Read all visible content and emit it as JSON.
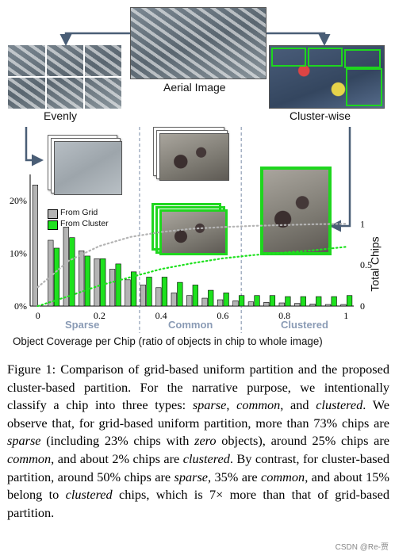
{
  "figure": {
    "labels": {
      "aerial": "Aerial Image",
      "evenly": "Evenly",
      "cluster_wise": "Cluster-wise"
    },
    "category_labels": [
      "Sparse",
      "Common",
      "Clustered"
    ],
    "category_color": "#8a9bb5",
    "legend": [
      "From Grid",
      "From Cluster"
    ],
    "series_colors": {
      "grid": "#b4b4b4",
      "cluster": "#1ee11e"
    },
    "xaxis_label": "Object Coverage per Chip (ratio of objects in chip to whole image)",
    "right_axis_label": "Total Chips"
  },
  "chart_data": {
    "type": "bar",
    "xlabel": "Object Coverage per Chip (ratio of objects in chip to whole image)",
    "ylabel": "",
    "y2label": "Total Chips",
    "ylim": [
      0,
      0.25
    ],
    "y2lim": [
      0,
      1.6
    ],
    "xlim": [
      -0.025,
      1.025
    ],
    "yticks": [
      "0%",
      "10%",
      "20%"
    ],
    "ytick_values": [
      0,
      0.1,
      0.2
    ],
    "y2ticks": [
      "0",
      "0.5",
      "1"
    ],
    "y2tick_values": [
      0,
      0.5,
      1
    ],
    "xticks": [
      "0",
      "0.2",
      "0.4",
      "0.6",
      "0.8",
      "1"
    ],
    "xtick_values": [
      0,
      0.2,
      0.4,
      0.6,
      0.8,
      1
    ],
    "bin_centers": [
      0,
      0.05,
      0.1,
      0.15,
      0.2,
      0.25,
      0.3,
      0.35,
      0.4,
      0.45,
      0.5,
      0.55,
      0.6,
      0.65,
      0.7,
      0.75,
      0.8,
      0.85,
      0.9,
      0.95,
      1.0
    ],
    "series": [
      {
        "name": "From Grid",
        "values": [
          0.23,
          0.125,
          0.15,
          0.105,
          0.09,
          0.07,
          0.05,
          0.04,
          0.035,
          0.025,
          0.02,
          0.015,
          0.012,
          0.01,
          0.008,
          0.007,
          0.006,
          0.005,
          0.004,
          0.003,
          0.003
        ]
      },
      {
        "name": "From Cluster",
        "values": [
          0,
          0.11,
          0.13,
          0.095,
          0.09,
          0.08,
          0.065,
          0.055,
          0.055,
          0.045,
          0.04,
          0.03,
          0.025,
          0.02,
          0.02,
          0.02,
          0.018,
          0.018,
          0.018,
          0.018,
          0.02
        ]
      }
    ],
    "cumulative_lines": [
      {
        "series": "From Grid",
        "style": "dotted",
        "color": "#b4b4b4",
        "x": [
          0,
          0.1,
          0.2,
          0.3,
          0.4,
          0.5,
          0.6,
          0.7,
          0.8,
          0.9,
          1.0
        ],
        "y": [
          0.23,
          0.55,
          0.73,
          0.84,
          0.9,
          0.94,
          0.96,
          0.975,
          0.985,
          0.995,
          1.0
        ]
      },
      {
        "series": "From Cluster",
        "style": "dotted",
        "color": "#1ee11e",
        "x": [
          0,
          0.1,
          0.2,
          0.3,
          0.4,
          0.5,
          0.6,
          0.7,
          0.8,
          0.9,
          1.0
        ],
        "y": [
          0.0,
          0.12,
          0.25,
          0.35,
          0.45,
          0.52,
          0.58,
          0.62,
          0.65,
          0.68,
          0.72
        ]
      }
    ],
    "region_dividers": [
      0.33,
      0.66
    ],
    "grid": false,
    "legend_position": "top-left"
  },
  "caption": {
    "fig_label": "Figure 1:",
    "t1": " Comparison of grid-based uniform partition and the proposed cluster-based partition. For the narrative purpose, we intentionally classify a chip into three types: ",
    "e1": "sparse",
    "t2": ", ",
    "e2": "common",
    "t3": ", and ",
    "e3": "clustered",
    "t4": ". We observe that, for grid-based uniform partition, more than 73% chips are ",
    "e4": "sparse",
    "t5": " (including 23% chips with ",
    "e5": "zero",
    "t6": " objects), around 25% chips are ",
    "e6": "common",
    "t7": ", and about 2% chips are ",
    "e7": "clustered",
    "t8": ". By contrast, for cluster-based partition, around 50% chips are ",
    "e8": "sparse",
    "t9": ", 35% are ",
    "e9": "common",
    "t10": ", and about 15% belong to ",
    "e10": "clustered",
    "t11": " chips, which is 7× more than that of grid-based partition."
  },
  "watermark": "CSDN @Re-贾"
}
